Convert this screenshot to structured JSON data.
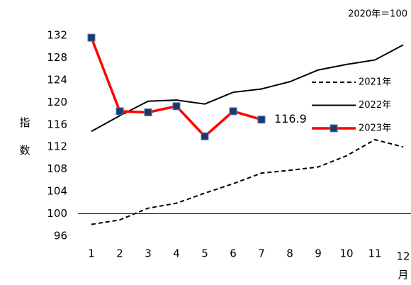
{
  "chart_data": {
    "type": "line",
    "subtitle": "2020年＝100",
    "y_label": "指数",
    "x_label": "月",
    "categories": [
      "1",
      "2",
      "3",
      "4",
      "5",
      "6",
      "7",
      "8",
      "9",
      "10",
      "11",
      "12"
    ],
    "ylim": [
      96,
      132
    ],
    "yticks": [
      96,
      100,
      104,
      108,
      112,
      116,
      120,
      124,
      128,
      132
    ],
    "hline": 100,
    "legend": "right",
    "series": [
      {
        "name": "2021年",
        "color": "#000000",
        "style": "dashed",
        "values": [
          98.1,
          98.9,
          101.0,
          101.9,
          103.7,
          105.4,
          107.3,
          107.8,
          108.4,
          110.4,
          113.3,
          112.0
        ]
      },
      {
        "name": "2022年",
        "color": "#000000",
        "style": "solid",
        "values": [
          114.8,
          117.6,
          120.2,
          120.4,
          119.7,
          121.8,
          122.4,
          123.7,
          125.8,
          126.8,
          127.6,
          130.3
        ]
      },
      {
        "name": "2023年",
        "color": "#ff0000",
        "style": "solid",
        "marker": "square",
        "marker_color": "#1f3864",
        "values": [
          131.6,
          118.4,
          118.2,
          119.3,
          113.9,
          118.4,
          116.9,
          null,
          null,
          null,
          null,
          null
        ]
      }
    ],
    "annotation_index": [
      2,
      6
    ]
  }
}
